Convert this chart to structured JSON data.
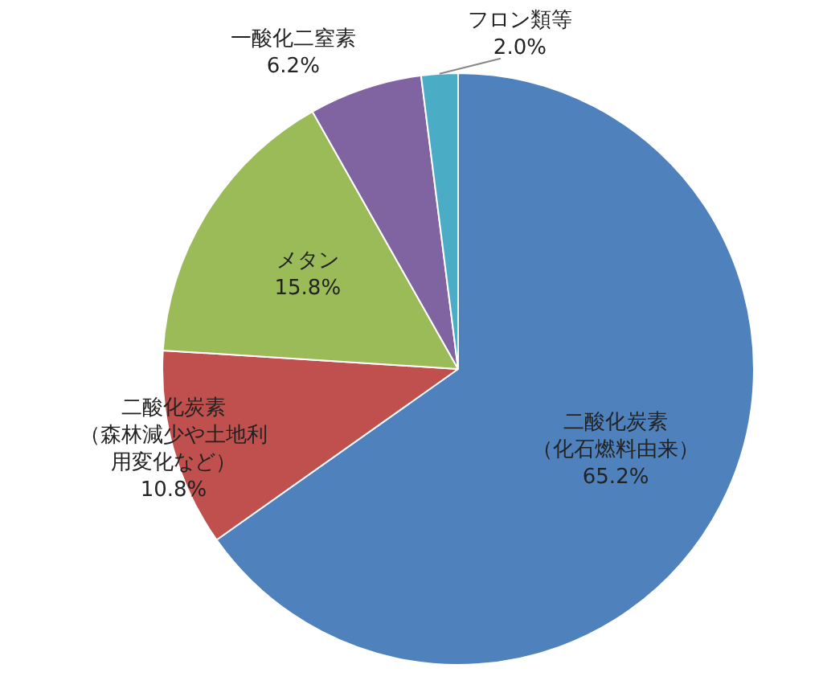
{
  "chart_data": {
    "type": "pie",
    "categories": [
      "二酸化炭素（化石燃料由来）",
      "二酸化炭素（森林減少や土地利用変化など）",
      "メタン",
      "一酸化二窒素",
      "フロン類等"
    ],
    "values": [
      65.2,
      10.8,
      15.8,
      6.2,
      2.0
    ],
    "colors": [
      "#4f81bd",
      "#c0504d",
      "#9bbb59",
      "#8064a2",
      "#4bacc6"
    ],
    "value_labels": [
      "65.2%",
      "10.8%",
      "15.8%",
      "6.2%",
      "2.0%"
    ],
    "legend": false
  }
}
